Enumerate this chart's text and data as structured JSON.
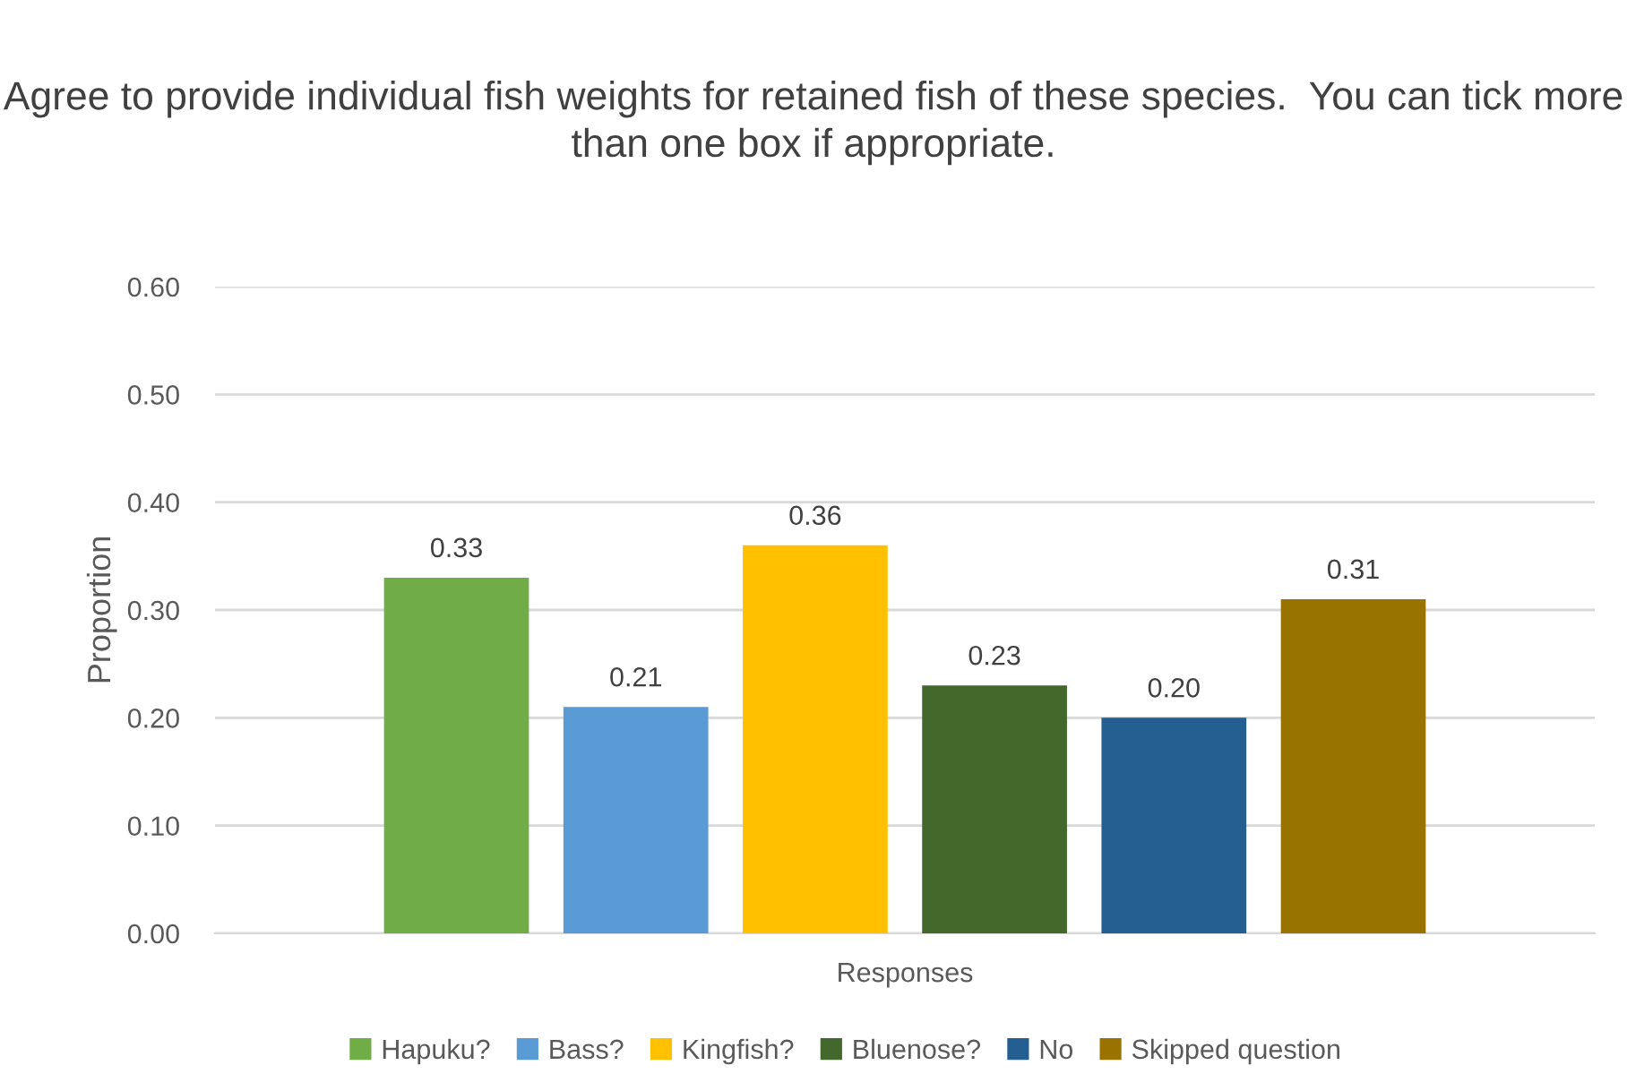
{
  "chart_data": {
    "type": "bar",
    "title": "Agree to provide individual fish weights for retained fish of these species.  You can tick more than one box if appropriate.",
    "xlabel": "Responses",
    "ylabel": "Proportion",
    "categories": [
      null
    ],
    "series": [
      {
        "name": "Hapuku?",
        "color": "#70ad47",
        "values": [
          0.33
        ],
        "value_labels": [
          "0.33"
        ]
      },
      {
        "name": "Bass?",
        "color": "#5b9bd5",
        "values": [
          0.21
        ],
        "value_labels": [
          "0.21"
        ]
      },
      {
        "name": "Kingfish?",
        "color": "#ffc000",
        "values": [
          0.36
        ],
        "value_labels": [
          "0.36"
        ]
      },
      {
        "name": "Bluenose?",
        "color": "#43682b",
        "values": [
          0.23
        ],
        "value_labels": [
          "0.23"
        ]
      },
      {
        "name": "No",
        "color": "#255e91",
        "values": [
          0.2
        ],
        "value_labels": [
          "0.20"
        ]
      },
      {
        "name": "Skipped question",
        "color": "#997300",
        "values": [
          0.31
        ],
        "value_labels": [
          "0.31"
        ]
      }
    ],
    "ylim": [
      0,
      0.6
    ],
    "yticks": [
      {
        "value": 0,
        "label": "0.00"
      },
      {
        "value": 0.1,
        "label": "0.10"
      },
      {
        "value": 0.2,
        "label": "0.20"
      },
      {
        "value": 0.3,
        "label": "0.30"
      },
      {
        "value": 0.4,
        "label": "0.40"
      },
      {
        "value": 0.5,
        "label": "0.50"
      },
      {
        "value": 0.6,
        "label": "0.60"
      }
    ],
    "grid": "y",
    "legend": "bottom"
  }
}
